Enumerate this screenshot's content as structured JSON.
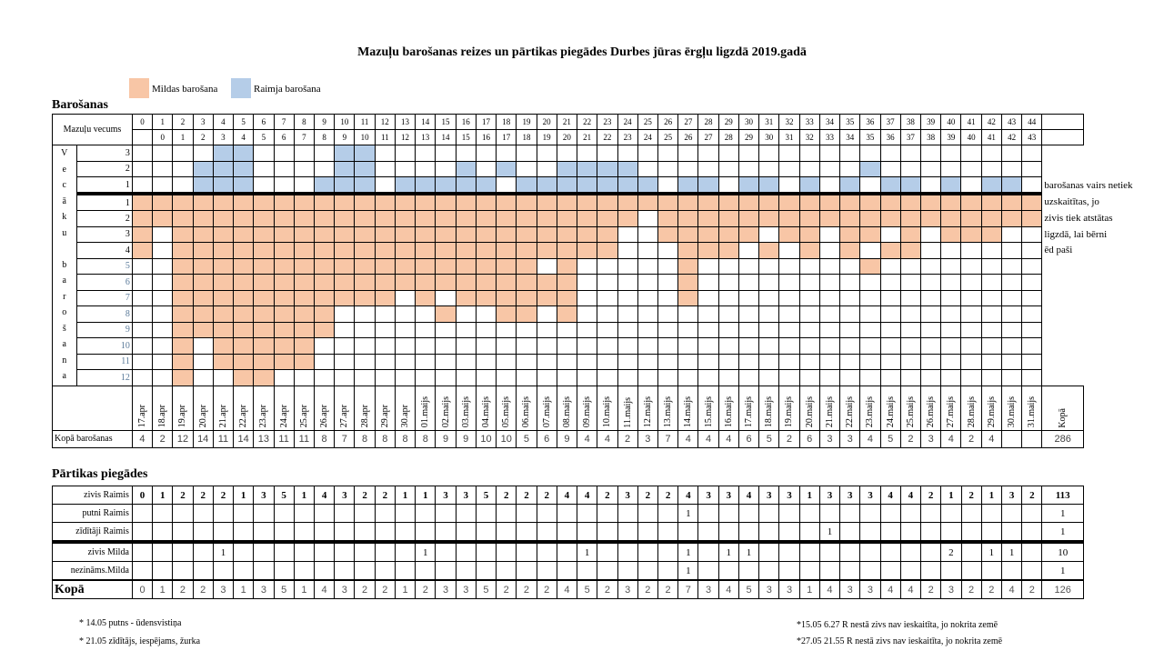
{
  "title": "Mazuļu barošanas reizes un pārtikas piegādes Durbes jūras ērgļu ligzdā 2019.gadā",
  "legend": [
    {
      "label": "Mildas barošana",
      "color": "#f8c6a6"
    },
    {
      "label": "Raimja barošana",
      "color": "#b5cde8"
    }
  ],
  "feeding": {
    "section_title": "Barošanas",
    "age_label": "Mazuļu vecums",
    "age_row1": [
      "0",
      "1",
      "2",
      "3",
      "4",
      "5",
      "6",
      "7",
      "8",
      "9",
      "10",
      "11",
      "12",
      "13",
      "14",
      "15",
      "16",
      "17",
      "18",
      "19",
      "20",
      "21",
      "22",
      "23",
      "24",
      "25",
      "26",
      "27",
      "28",
      "29",
      "30",
      "31",
      "32",
      "33",
      "34",
      "35",
      "36",
      "37",
      "38",
      "39",
      "40",
      "41",
      "42",
      "43",
      "44"
    ],
    "age_row2": [
      "",
      "0",
      "1",
      "2",
      "3",
      "4",
      "5",
      "6",
      "7",
      "8",
      "9",
      "10",
      "11",
      "12",
      "13",
      "14",
      "15",
      "16",
      "17",
      "18",
      "19",
      "20",
      "21",
      "22",
      "23",
      "24",
      "25",
      "26",
      "27",
      "28",
      "29",
      "30",
      "31",
      "32",
      "33",
      "34",
      "35",
      "36",
      "37",
      "38",
      "39",
      "40",
      "41",
      "42",
      "43"
    ],
    "vertical_letters": [
      "V",
      "e",
      "c",
      "ā",
      "k",
      "u",
      "",
      "",
      "b",
      "a",
      "r",
      "o",
      "š",
      "a",
      "n",
      "a"
    ],
    "raimis_rows": [
      {
        "num": "3",
        "cells": "000011000011000000000000000000000000000000000"
      },
      {
        "num": "2",
        "cells": "000111000011000010100111100000000000100000000"
      },
      {
        "num": "1",
        "cells": "000111000111011111011111110110110101011010110"
      }
    ],
    "milda_rows": [
      {
        "num": "1",
        "cells": "111111111111111111111111111111111111111111111"
      },
      {
        "num": "2",
        "cells": "111111111111111111111111101111111111111111111"
      },
      {
        "num": "3",
        "cells": "101111111111111111111111001111101101101011100"
      },
      {
        "num": "4",
        "cells": "101111111111111111111111000111010101011000000"
      },
      {
        "num": "5",
        "cells": "001111111111111111110100000100000000100000000"
      },
      {
        "num": "6",
        "cells": "001111111111111111111100000100000000000000000"
      },
      {
        "num": "7",
        "cells": "001111111111101011111100000100000000000000000"
      },
      {
        "num": "8",
        "cells": "001111111100000100110100000000000000000000000"
      },
      {
        "num": "9",
        "cells": "001111111100000000000000000000000000000000000"
      },
      {
        "num": "10",
        "cells": "001011111000000000000000000000000000000000000"
      },
      {
        "num": "11",
        "cells": "001011111000000000000000000000000000000000000"
      },
      {
        "num": "12",
        "cells": "001001100000000000000000000000000000000000000"
      }
    ],
    "notes": [
      "barošanas vairs netiek",
      "uzskaitītas, jo",
      "zivis tiek atstātas",
      "ligzdā, lai bērni",
      "ēd paši"
    ],
    "dates": [
      "17.apr",
      "18.apr",
      "19.apr",
      "20.apr",
      "21.apr",
      "22.apr",
      "23.apr",
      "24.apr",
      "25.apr",
      "26.apr",
      "27.apr",
      "28.apr",
      "29.apr",
      "30.apr",
      "01.maijs",
      "02.maijs",
      "03.maijs",
      "04.maijs",
      "05.maijs",
      "06.maijs",
      "07.maijs",
      "08.maijs",
      "09.maijs",
      "10.maijs",
      "11.maijs",
      "12.maijs",
      "13.maijs",
      "14.maijs",
      "15.maijs",
      "16.maijs",
      "17.maijs",
      "18.maijs",
      "19.maijs",
      "20.maijs",
      "21.maijs",
      "22.maijs",
      "23.maijs",
      "24.maijs",
      "25.maijs",
      "26.maijs",
      "27.maijs",
      "28.maijs",
      "29.maijs",
      "30.maijs",
      "31.maijs"
    ],
    "total_header": "Kopā",
    "total_label": "Kopā barošanas",
    "totals": [
      "4",
      "2",
      "12",
      "14",
      "11",
      "14",
      "13",
      "11",
      "11",
      "8",
      "7",
      "8",
      "8",
      "8",
      "8",
      "9",
      "9",
      "10",
      "10",
      "5",
      "6",
      "9",
      "4",
      "4",
      "2",
      "3",
      "7",
      "4",
      "4",
      "4",
      "6",
      "5",
      "2",
      "6",
      "3",
      "3",
      "4",
      "5",
      "2",
      "3",
      "4",
      "2",
      "4",
      "",
      ""
    ],
    "grand_total": "286"
  },
  "deliveries": {
    "section_title": "Pārtikas piegādes",
    "rows": [
      {
        "label": "zivis Raimis",
        "values": [
          "0",
          "1",
          "2",
          "2",
          "2",
          "1",
          "3",
          "5",
          "1",
          "4",
          "3",
          "2",
          "2",
          "1",
          "1",
          "3",
          "3",
          "5",
          "2",
          "2",
          "2",
          "4",
          "4",
          "2",
          "3",
          "2",
          "2",
          "4",
          "3",
          "3",
          "4",
          "3",
          "3",
          "1",
          "3",
          "3",
          "3",
          "4",
          "4",
          "2",
          "1",
          "2",
          "1",
          "3",
          "2"
        ],
        "total": "113",
        "bold": true
      },
      {
        "label": "putni Raimis",
        "values": [
          "",
          "",
          "",
          "",
          "",
          "",
          "",
          "",
          "",
          "",
          "",
          "",
          "",
          "",
          "",
          "",
          "",
          "",
          "",
          "",
          "",
          "",
          "",
          "",
          "",
          "",
          "",
          "1",
          "",
          "",
          "",
          "",
          "",
          "",
          "",
          "",
          "",
          "",
          "",
          "",
          "",
          "",
          "",
          "",
          ""
        ],
        "total": "1"
      },
      {
        "label": "zīdītāji Raimis",
        "values": [
          "",
          "",
          "",
          "",
          "",
          "",
          "",
          "",
          "",
          "",
          "",
          "",
          "",
          "",
          "",
          "",
          "",
          "",
          "",
          "",
          "",
          "",
          "",
          "",
          "",
          "",
          "",
          "",
          "",
          "",
          "",
          "",
          "",
          "",
          "1",
          "",
          "",
          "",
          "",
          "",
          "",
          "",
          "",
          "",
          ""
        ],
        "total": "1"
      },
      {
        "label": "zivis Milda",
        "values": [
          "",
          "",
          "",
          "",
          "1",
          "",
          "",
          "",
          "",
          "",
          "",
          "",
          "",
          "",
          "1",
          "",
          "",
          "",
          "",
          "",
          "",
          "",
          "1",
          "",
          "",
          "",
          "",
          "1",
          "",
          "1",
          "1",
          "",
          "",
          "",
          "",
          "",
          "",
          "",
          "",
          "",
          "2",
          "",
          "1",
          "1",
          ""
        ],
        "total": "10"
      },
      {
        "label": "nezināms.Milda",
        "values": [
          "",
          "",
          "",
          "",
          "",
          "",
          "",
          "",
          "",
          "",
          "",
          "",
          "",
          "",
          "",
          "",
          "",
          "",
          "",
          "",
          "",
          "",
          "",
          "",
          "",
          "",
          "",
          "1",
          "",
          "",
          "",
          "",
          "",
          "",
          "",
          "",
          "",
          "",
          "",
          "",
          "",
          "",
          "",
          "",
          ""
        ],
        "total": "1"
      }
    ],
    "total_label": "Kopā",
    "totals": [
      "0",
      "1",
      "2",
      "2",
      "3",
      "1",
      "3",
      "5",
      "1",
      "4",
      "3",
      "2",
      "2",
      "1",
      "2",
      "3",
      "3",
      "5",
      "2",
      "2",
      "2",
      "4",
      "5",
      "2",
      "3",
      "2",
      "2",
      "7",
      "3",
      "4",
      "5",
      "3",
      "3",
      "1",
      "4",
      "3",
      "3",
      "4",
      "4",
      "2",
      "3",
      "2",
      "2",
      "4",
      "2"
    ],
    "grand_total": "126"
  },
  "footnotes": {
    "left": [
      "* 14.05 putns - ūdensvistiņa",
      "* 21.05 zīdītājs, iespējams, žurka"
    ],
    "right": [
      "*15.05  6.27 R nestā zivs nav ieskaitīta, jo nokrita zemē",
      "*27.05  21.55 R nestā zivs nav ieskaitīta, jo nokrita zemē"
    ]
  }
}
